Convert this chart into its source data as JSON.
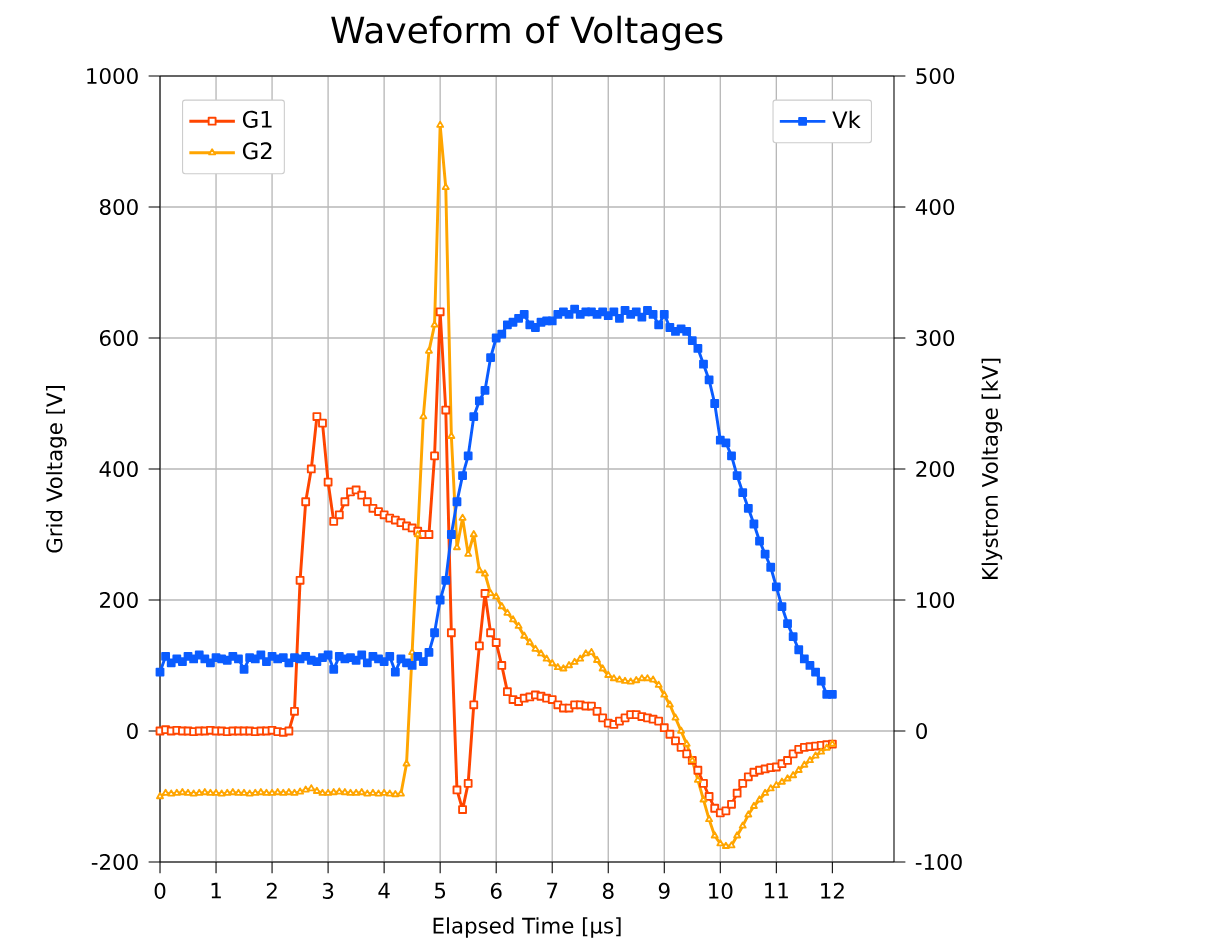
{
  "chart_data": {
    "type": "line",
    "title": "Waveform of Voltages",
    "xlabel": "Elapsed Time [µs]",
    "ylabel": "Grid Voltage [V]",
    "y2label": "Klystron Voltage [kV]",
    "x": [
      0,
      0.1,
      0.2,
      0.3,
      0.4,
      0.5,
      0.6,
      0.7,
      0.8,
      0.9,
      1,
      1.1,
      1.2,
      1.3,
      1.4,
      1.5,
      1.6,
      1.7,
      1.8,
      1.9,
      2,
      2.1,
      2.2,
      2.3,
      2.4,
      2.5,
      2.6,
      2.7,
      2.8,
      2.9,
      3,
      3.1,
      3.2,
      3.3,
      3.4,
      3.5,
      3.6,
      3.7,
      3.8,
      3.9,
      4,
      4.1,
      4.2,
      4.3,
      4.4,
      4.5,
      4.6,
      4.7,
      4.8,
      4.9,
      5,
      5.1,
      5.2,
      5.3,
      5.4,
      5.5,
      5.6,
      5.7,
      5.8,
      5.9,
      6,
      6.1,
      6.2,
      6.3,
      6.4,
      6.5,
      6.6,
      6.7,
      6.8,
      6.9,
      7,
      7.1,
      7.2,
      7.3,
      7.4,
      7.5,
      7.6,
      7.7,
      7.8,
      7.9,
      8,
      8.1,
      8.2,
      8.3,
      8.4,
      8.5,
      8.6,
      8.7,
      8.8,
      8.9,
      9,
      9.1,
      9.2,
      9.3,
      9.4,
      9.5,
      9.6,
      9.7,
      9.8,
      9.9,
      10,
      10.1,
      10.2,
      10.3,
      10.4,
      10.5,
      10.6,
      10.7,
      10.8,
      10.9,
      11,
      11.1,
      11.2,
      11.3,
      11.4,
      11.5,
      11.6,
      11.7,
      11.8,
      11.9,
      12
    ],
    "series": [
      {
        "name": "G1",
        "color": "#ff4500",
        "marker": "square",
        "values": [
          0,
          2,
          0,
          1,
          0,
          0,
          -1,
          0,
          0,
          1,
          0,
          0,
          -1,
          0,
          0,
          0,
          0,
          -1,
          0,
          0,
          1,
          -1,
          -2,
          0,
          30,
          230,
          350,
          400,
          480,
          470,
          380,
          320,
          330,
          350,
          365,
          368,
          360,
          350,
          340,
          335,
          330,
          325,
          322,
          318,
          313,
          310,
          305,
          300,
          300,
          420,
          640,
          490,
          150,
          -90,
          -120,
          -80,
          40,
          130,
          210,
          150,
          135,
          100,
          60,
          48,
          45,
          50,
          52,
          55,
          53,
          50,
          48,
          40,
          35,
          35,
          40,
          40,
          38,
          38,
          30,
          20,
          12,
          10,
          15,
          20,
          25,
          25,
          22,
          20,
          18,
          15,
          5,
          -5,
          -15,
          -25,
          -35,
          -45,
          -60,
          -80,
          -100,
          -118,
          -125,
          -122,
          -112,
          -95,
          -80,
          -70,
          -63,
          -60,
          -58,
          -56,
          -55,
          -50,
          -45,
          -35,
          -28,
          -25,
          -24,
          -23,
          -22,
          -21,
          -20
        ]
      },
      {
        "name": "G2",
        "color": "#ffa500",
        "marker": "triangle",
        "values": [
          -100,
          -95,
          -96,
          -95,
          -94,
          -95,
          -96,
          -95,
          -94,
          -95,
          -95,
          -96,
          -95,
          -94,
          -95,
          -95,
          -96,
          -95,
          -94,
          -95,
          -95,
          -94,
          -95,
          -94,
          -95,
          -93,
          -90,
          -88,
          -92,
          -95,
          -95,
          -94,
          -93,
          -94,
          -95,
          -95,
          -94,
          -96,
          -95,
          -96,
          -95,
          -96,
          -97,
          -96,
          -50,
          120,
          300,
          480,
          580,
          620,
          925,
          830,
          450,
          280,
          325,
          270,
          300,
          245,
          240,
          210,
          205,
          190,
          180,
          170,
          160,
          145,
          135,
          125,
          118,
          110,
          103,
          97,
          95,
          100,
          105,
          110,
          118,
          120,
          108,
          95,
          85,
          80,
          78,
          76,
          75,
          77,
          80,
          80,
          78,
          70,
          55,
          40,
          20,
          0,
          -20,
          -45,
          -75,
          -105,
          -135,
          -160,
          -172,
          -176,
          -175,
          -160,
          -145,
          -128,
          -115,
          -105,
          -95,
          -88,
          -83,
          -78,
          -73,
          -68,
          -60,
          -52,
          -45,
          -38,
          -32,
          -26,
          -20
        ]
      },
      {
        "name": "Vk",
        "color": "#0a5cff",
        "marker": "square",
        "axis": "y2",
        "values": [
          45,
          57,
          52,
          55,
          53,
          57,
          55,
          58,
          55,
          52,
          56,
          55,
          54,
          57,
          55,
          47,
          56,
          55,
          58,
          53,
          57,
          55,
          56,
          52,
          56,
          55,
          57,
          54,
          53,
          56,
          58,
          47,
          57,
          55,
          56,
          54,
          58,
          52,
          57,
          55,
          53,
          57,
          45,
          55,
          52,
          50,
          57,
          53,
          60,
          75,
          100,
          115,
          150,
          175,
          195,
          210,
          240,
          252,
          260,
          285,
          300,
          303,
          310,
          312,
          315,
          318,
          310,
          308,
          312,
          313,
          313,
          318,
          320,
          318,
          322,
          318,
          320,
          320,
          318,
          320,
          317,
          320,
          315,
          321,
          318,
          320,
          316,
          321,
          318,
          310,
          318,
          308,
          305,
          307,
          305,
          298,
          292,
          280,
          268,
          250,
          222,
          220,
          210,
          195,
          182,
          170,
          158,
          145,
          135,
          125,
          110,
          95,
          82,
          72,
          62,
          55,
          50,
          45,
          38,
          28,
          28
        ]
      }
    ],
    "xlim": [
      0,
      13.1
    ],
    "xticks": [
      0,
      1,
      2,
      3,
      4,
      5,
      6,
      7,
      8,
      9,
      10,
      11,
      12
    ],
    "ylim": [
      -200,
      1000
    ],
    "yticks": [
      -200,
      0,
      200,
      400,
      600,
      800,
      1000
    ],
    "y2lim": [
      -100,
      500
    ],
    "y2ticks": [
      -100,
      0,
      100,
      200,
      300,
      400,
      500
    ],
    "grid": true,
    "legend": "top left",
    "line_style": "solid"
  }
}
